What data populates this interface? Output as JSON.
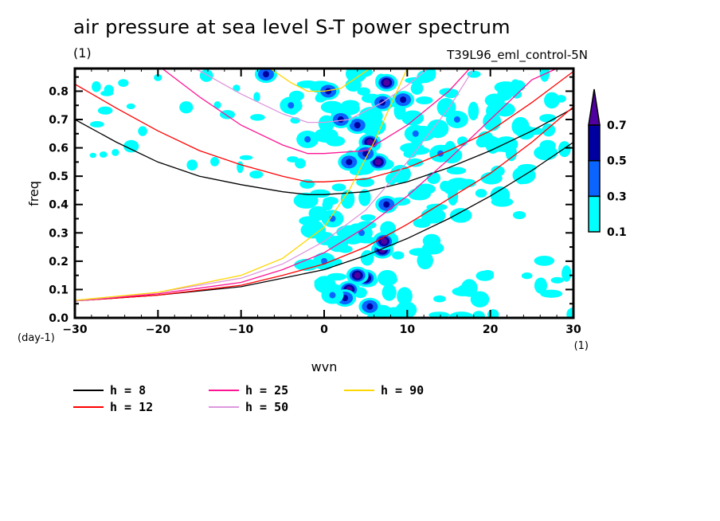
{
  "chart_data": {
    "type": "contour",
    "title": "air pressure at sea level S-T power spectrum",
    "subtitle_left": "(1)",
    "subtitle_right": "T39L96_eml_control-5N",
    "xlabel": "wvn",
    "ylabel": "freq",
    "x_unit": "(1)",
    "y_unit": "(day-1)",
    "xlim": [
      -30,
      30
    ],
    "ylim": [
      0,
      0.88
    ],
    "x_ticks": [
      -30,
      -20,
      -10,
      0,
      10,
      20,
      30
    ],
    "x_tick_labels": [
      "-30",
      "-20",
      "-10",
      "0",
      "10",
      "20",
      "30"
    ],
    "y_ticks": [
      0.0,
      0.1,
      0.2,
      0.3,
      0.4,
      0.5,
      0.6,
      0.7,
      0.8
    ],
    "y_tick_labels": [
      "0.0",
      "0.1",
      "0.2",
      "0.3",
      "0.4",
      "0.5",
      "0.6",
      "0.7",
      "0.8"
    ],
    "colorbar": {
      "levels": [
        0.1,
        0.3,
        0.5,
        0.7
      ],
      "labels": [
        "0.1",
        "0.3",
        "0.5",
        "0.7"
      ],
      "colors": [
        "#00ffff",
        "#0a64ff",
        "#0000a0",
        "#5000a0"
      ],
      "extend": "max"
    },
    "contour_patches": [
      {
        "wvn": 3.0,
        "freq": 0.1,
        "level": 0.7
      },
      {
        "wvn": 5.0,
        "freq": 0.14,
        "level": 0.7
      },
      {
        "wvn": 7.0,
        "freq": 0.24,
        "level": 0.7
      },
      {
        "wvn": 7.2,
        "freq": 0.27,
        "level": 0.7
      },
      {
        "wvn": 4.0,
        "freq": 0.15,
        "level": 0.7
      },
      {
        "wvn": 5.5,
        "freq": 0.04,
        "level": 0.5
      },
      {
        "wvn": 2.5,
        "freq": 0.07,
        "level": 0.5
      },
      {
        "wvn": 6.5,
        "freq": 0.55,
        "level": 0.7
      },
      {
        "wvn": 5.5,
        "freq": 0.62,
        "level": 0.7
      },
      {
        "wvn": 7.5,
        "freq": 0.83,
        "level": 0.7
      },
      {
        "wvn": 4.0,
        "freq": 0.68,
        "level": 0.5
      },
      {
        "wvn": 5.0,
        "freq": 0.58,
        "level": 0.5
      },
      {
        "wvn": -7.0,
        "freq": 0.86,
        "level": 0.5
      },
      {
        "wvn": 0.5,
        "freq": 0.8,
        "level": 0.5
      },
      {
        "wvn": 2.0,
        "freq": 0.7,
        "level": 0.5
      },
      {
        "wvn": 9.5,
        "freq": 0.77,
        "level": 0.5
      },
      {
        "wvn": 7.0,
        "freq": 0.76,
        "level": 0.5
      },
      {
        "wvn": 3.0,
        "freq": 0.55,
        "level": 0.5
      },
      {
        "wvn": 7.5,
        "freq": 0.4,
        "level": 0.5
      },
      {
        "wvn": 1.0,
        "freq": 0.35,
        "level": 0.3
      },
      {
        "wvn": 0.0,
        "freq": 0.2,
        "level": 0.3
      },
      {
        "wvn": 1.0,
        "freq": 0.08,
        "level": 0.3
      },
      {
        "wvn": 4.5,
        "freq": 0.3,
        "level": 0.3
      },
      {
        "wvn": 11.0,
        "freq": 0.65,
        "level": 0.3
      },
      {
        "wvn": 14.0,
        "freq": 0.58,
        "level": 0.3
      },
      {
        "wvn": -4.0,
        "freq": 0.75,
        "level": 0.3
      },
      {
        "wvn": -2.0,
        "freq": 0.63,
        "level": 0.3
      },
      {
        "wvn": 16.0,
        "freq": 0.7,
        "level": 0.3
      }
    ],
    "series": [
      {
        "name": "h =  8",
        "color": "#000000",
        "branch": "upper",
        "x": [
          -30,
          -25,
          -20,
          -15,
          -10,
          -5,
          -2,
          0,
          5,
          10,
          15,
          20,
          25,
          30
        ],
        "y": [
          0.7,
          0.62,
          0.55,
          0.5,
          0.47,
          0.445,
          0.435,
          0.435,
          0.445,
          0.48,
          0.53,
          0.59,
          0.66,
          0.74
        ]
      },
      {
        "name": "h = 12",
        "color": "#ff0000",
        "branch": "upper",
        "x": [
          -30,
          -25,
          -20,
          -15,
          -10,
          -5,
          -2,
          0,
          5,
          10,
          15,
          20,
          25,
          30
        ],
        "y": [
          0.825,
          0.74,
          0.66,
          0.59,
          0.54,
          0.5,
          0.48,
          0.48,
          0.49,
          0.53,
          0.59,
          0.66,
          0.76,
          0.87
        ]
      },
      {
        "name": "h = 25",
        "color": "#ff1493",
        "branch": "upper",
        "x": [
          -19.5,
          -15,
          -10,
          -5,
          -2,
          0,
          5,
          10,
          15,
          17.5
        ],
        "y": [
          0.88,
          0.78,
          0.68,
          0.61,
          0.58,
          0.58,
          0.59,
          0.68,
          0.8,
          0.88
        ]
      },
      {
        "name": "h = 50",
        "color": "#dd99dd",
        "branch": "upper",
        "x": [
          -15.5,
          -10,
          -5,
          -2,
          0,
          3,
          7,
          10,
          12.5
        ],
        "y": [
          0.88,
          0.79,
          0.72,
          0.69,
          0.69,
          0.7,
          0.76,
          0.82,
          0.88
        ]
      },
      {
        "name": "h = 90",
        "color": "#ffd700",
        "branch": "upper",
        "x": [
          -6.5,
          -4,
          -2,
          0,
          2,
          4,
          5.5
        ],
        "y": [
          0.88,
          0.83,
          0.8,
          0.8,
          0.81,
          0.85,
          0.88
        ]
      },
      {
        "name": "h =  8",
        "color": "#000000",
        "branch": "lower",
        "x": [
          -30,
          -20,
          -10,
          -5,
          0,
          5,
          10,
          15,
          20,
          25,
          30
        ],
        "y": [
          0.06,
          0.08,
          0.11,
          0.14,
          0.17,
          0.22,
          0.28,
          0.35,
          0.43,
          0.52,
          0.62
        ]
      },
      {
        "name": "h = 12",
        "color": "#ff0000",
        "branch": "lower",
        "x": [
          -30,
          -20,
          -10,
          -5,
          0,
          5,
          10,
          15,
          20,
          25,
          30
        ],
        "y": [
          0.06,
          0.08,
          0.115,
          0.15,
          0.19,
          0.25,
          0.33,
          0.42,
          0.51,
          0.62,
          0.745
        ]
      },
      {
        "name": "h = 25",
        "color": "#ff1493",
        "branch": "lower",
        "x": [
          -30,
          -20,
          -10,
          -5,
          0,
          5,
          10,
          15,
          20,
          25,
          28
        ],
        "y": [
          0.06,
          0.085,
          0.125,
          0.17,
          0.23,
          0.32,
          0.43,
          0.56,
          0.7,
          0.84,
          0.88
        ]
      },
      {
        "name": "h = 50",
        "color": "#dd99dd",
        "branch": "lower",
        "x": [
          -30,
          -20,
          -10,
          -5,
          0,
          5,
          10,
          15,
          18
        ],
        "y": [
          0.06,
          0.09,
          0.14,
          0.19,
          0.27,
          0.38,
          0.55,
          0.74,
          0.88
        ]
      },
      {
        "name": "h = 90",
        "color": "#ffd700",
        "branch": "lower",
        "x": [
          -30,
          -20,
          -10,
          -5,
          0,
          3,
          6,
          8,
          10
        ],
        "y": [
          0.062,
          0.09,
          0.15,
          0.21,
          0.32,
          0.45,
          0.62,
          0.75,
          0.88
        ]
      }
    ],
    "legend": [
      {
        "label": "h =  8",
        "color": "#000000"
      },
      {
        "label": "h = 12",
        "color": "#ff0000"
      },
      {
        "label": "h = 25",
        "color": "#ff1493"
      },
      {
        "label": "h = 50",
        "color": "#dd99dd"
      },
      {
        "label": "h = 90",
        "color": "#ffd700"
      }
    ],
    "legend_placement": "bottom",
    "grid": false
  }
}
